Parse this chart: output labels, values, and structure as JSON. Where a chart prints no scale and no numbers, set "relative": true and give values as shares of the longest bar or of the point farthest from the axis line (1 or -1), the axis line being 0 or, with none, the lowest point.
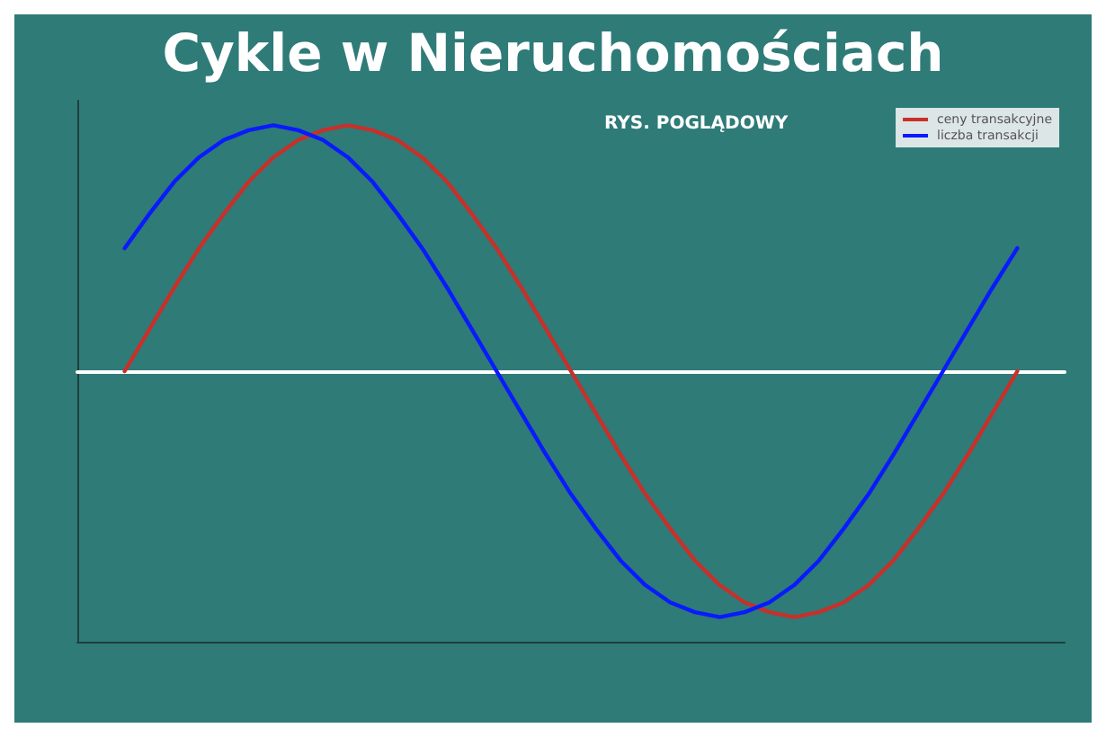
{
  "chart_data": {
    "type": "line",
    "title": "Cykle w Nieruchomościach",
    "subtitle": "RYS. POGLĄDOWY",
    "relative": true,
    "categories": [
      null,
      null,
      null,
      null,
      null,
      null,
      null,
      null,
      null,
      null,
      null,
      null,
      null,
      null,
      null,
      null,
      null,
      null,
      null,
      null,
      null,
      null,
      null,
      null,
      null,
      null,
      null,
      null,
      null,
      null,
      null,
      null,
      null,
      null,
      null,
      null,
      null
    ],
    "series": [
      {
        "name": "ceny transakcyjne",
        "color": "#c8302a",
        "values": [
          0,
          0.17,
          0.34,
          0.5,
          0.64,
          0.77,
          0.87,
          0.94,
          0.98,
          1,
          0.98,
          0.94,
          0.87,
          0.77,
          0.64,
          0.5,
          0.34,
          0.17,
          0,
          -0.17,
          -0.34,
          -0.5,
          -0.64,
          -0.77,
          -0.87,
          -0.94,
          -0.98,
          -1,
          -0.98,
          -0.94,
          -0.87,
          -0.77,
          -0.64,
          -0.5,
          -0.34,
          -0.17,
          0
        ]
      },
      {
        "name": "liczba transakcji",
        "color": "#0a1aff",
        "values": [
          0.5,
          0.64,
          0.77,
          0.87,
          0.94,
          0.98,
          1,
          0.98,
          0.94,
          0.87,
          0.77,
          0.64,
          0.5,
          0.34,
          0.17,
          0,
          -0.17,
          -0.34,
          -0.5,
          -0.64,
          -0.77,
          -0.87,
          -0.94,
          -0.98,
          -1,
          -0.98,
          -0.94,
          -0.87,
          -0.77,
          -0.64,
          -0.5,
          -0.34,
          -0.17,
          0,
          0.17,
          0.34,
          0.5
        ]
      }
    ],
    "legend": "top right",
    "grid": false,
    "marker": "none",
    "line_style": "solid"
  }
}
